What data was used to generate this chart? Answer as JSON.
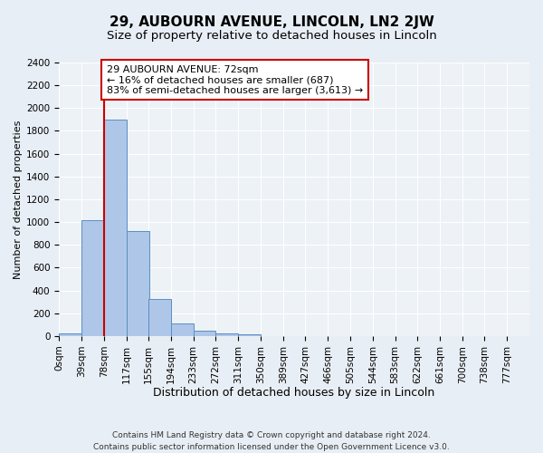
{
  "title": "29, AUBOURN AVENUE, LINCOLN, LN2 2JW",
  "subtitle": "Size of property relative to detached houses in Lincoln",
  "xlabel": "Distribution of detached houses by size in Lincoln",
  "ylabel": "Number of detached properties",
  "bin_labels": [
    "0sqm",
    "39sqm",
    "78sqm",
    "117sqm",
    "155sqm",
    "194sqm",
    "233sqm",
    "272sqm",
    "311sqm",
    "350sqm",
    "389sqm",
    "427sqm",
    "466sqm",
    "505sqm",
    "544sqm",
    "583sqm",
    "622sqm",
    "661sqm",
    "700sqm",
    "738sqm",
    "777sqm"
  ],
  "bin_edges": [
    0,
    39,
    78,
    117,
    155,
    194,
    233,
    272,
    311,
    350,
    389,
    427,
    466,
    505,
    544,
    583,
    622,
    661,
    700,
    738,
    777
  ],
  "bar_values": [
    20,
    1020,
    1900,
    920,
    325,
    110,
    50,
    25,
    15,
    0,
    0,
    0,
    0,
    0,
    0,
    0,
    0,
    0,
    0,
    0
  ],
  "bar_color": "#aec6e8",
  "bar_edge_color": "#5a8fc0",
  "vline_x": 78,
  "vline_color": "#cc0000",
  "ylim": [
    0,
    2400
  ],
  "yticks": [
    0,
    200,
    400,
    600,
    800,
    1000,
    1200,
    1400,
    1600,
    1800,
    2000,
    2200,
    2400
  ],
  "annotation_text": "29 AUBOURN AVENUE: 72sqm\n← 16% of detached houses are smaller (687)\n83% of semi-detached houses are larger (3,613) →",
  "annotation_box_color": "#ffffff",
  "annotation_box_edge": "#cc0000",
  "footer_line1": "Contains HM Land Registry data © Crown copyright and database right 2024.",
  "footer_line2": "Contains public sector information licensed under the Open Government Licence v3.0.",
  "bg_color": "#e8eef5",
  "plot_bg_color": "#edf2f7",
  "grid_color": "#ffffff",
  "title_fontsize": 11,
  "subtitle_fontsize": 9.5,
  "xlabel_fontsize": 9,
  "ylabel_fontsize": 8,
  "tick_fontsize": 7.5,
  "footer_fontsize": 6.5,
  "annot_fontsize": 8
}
